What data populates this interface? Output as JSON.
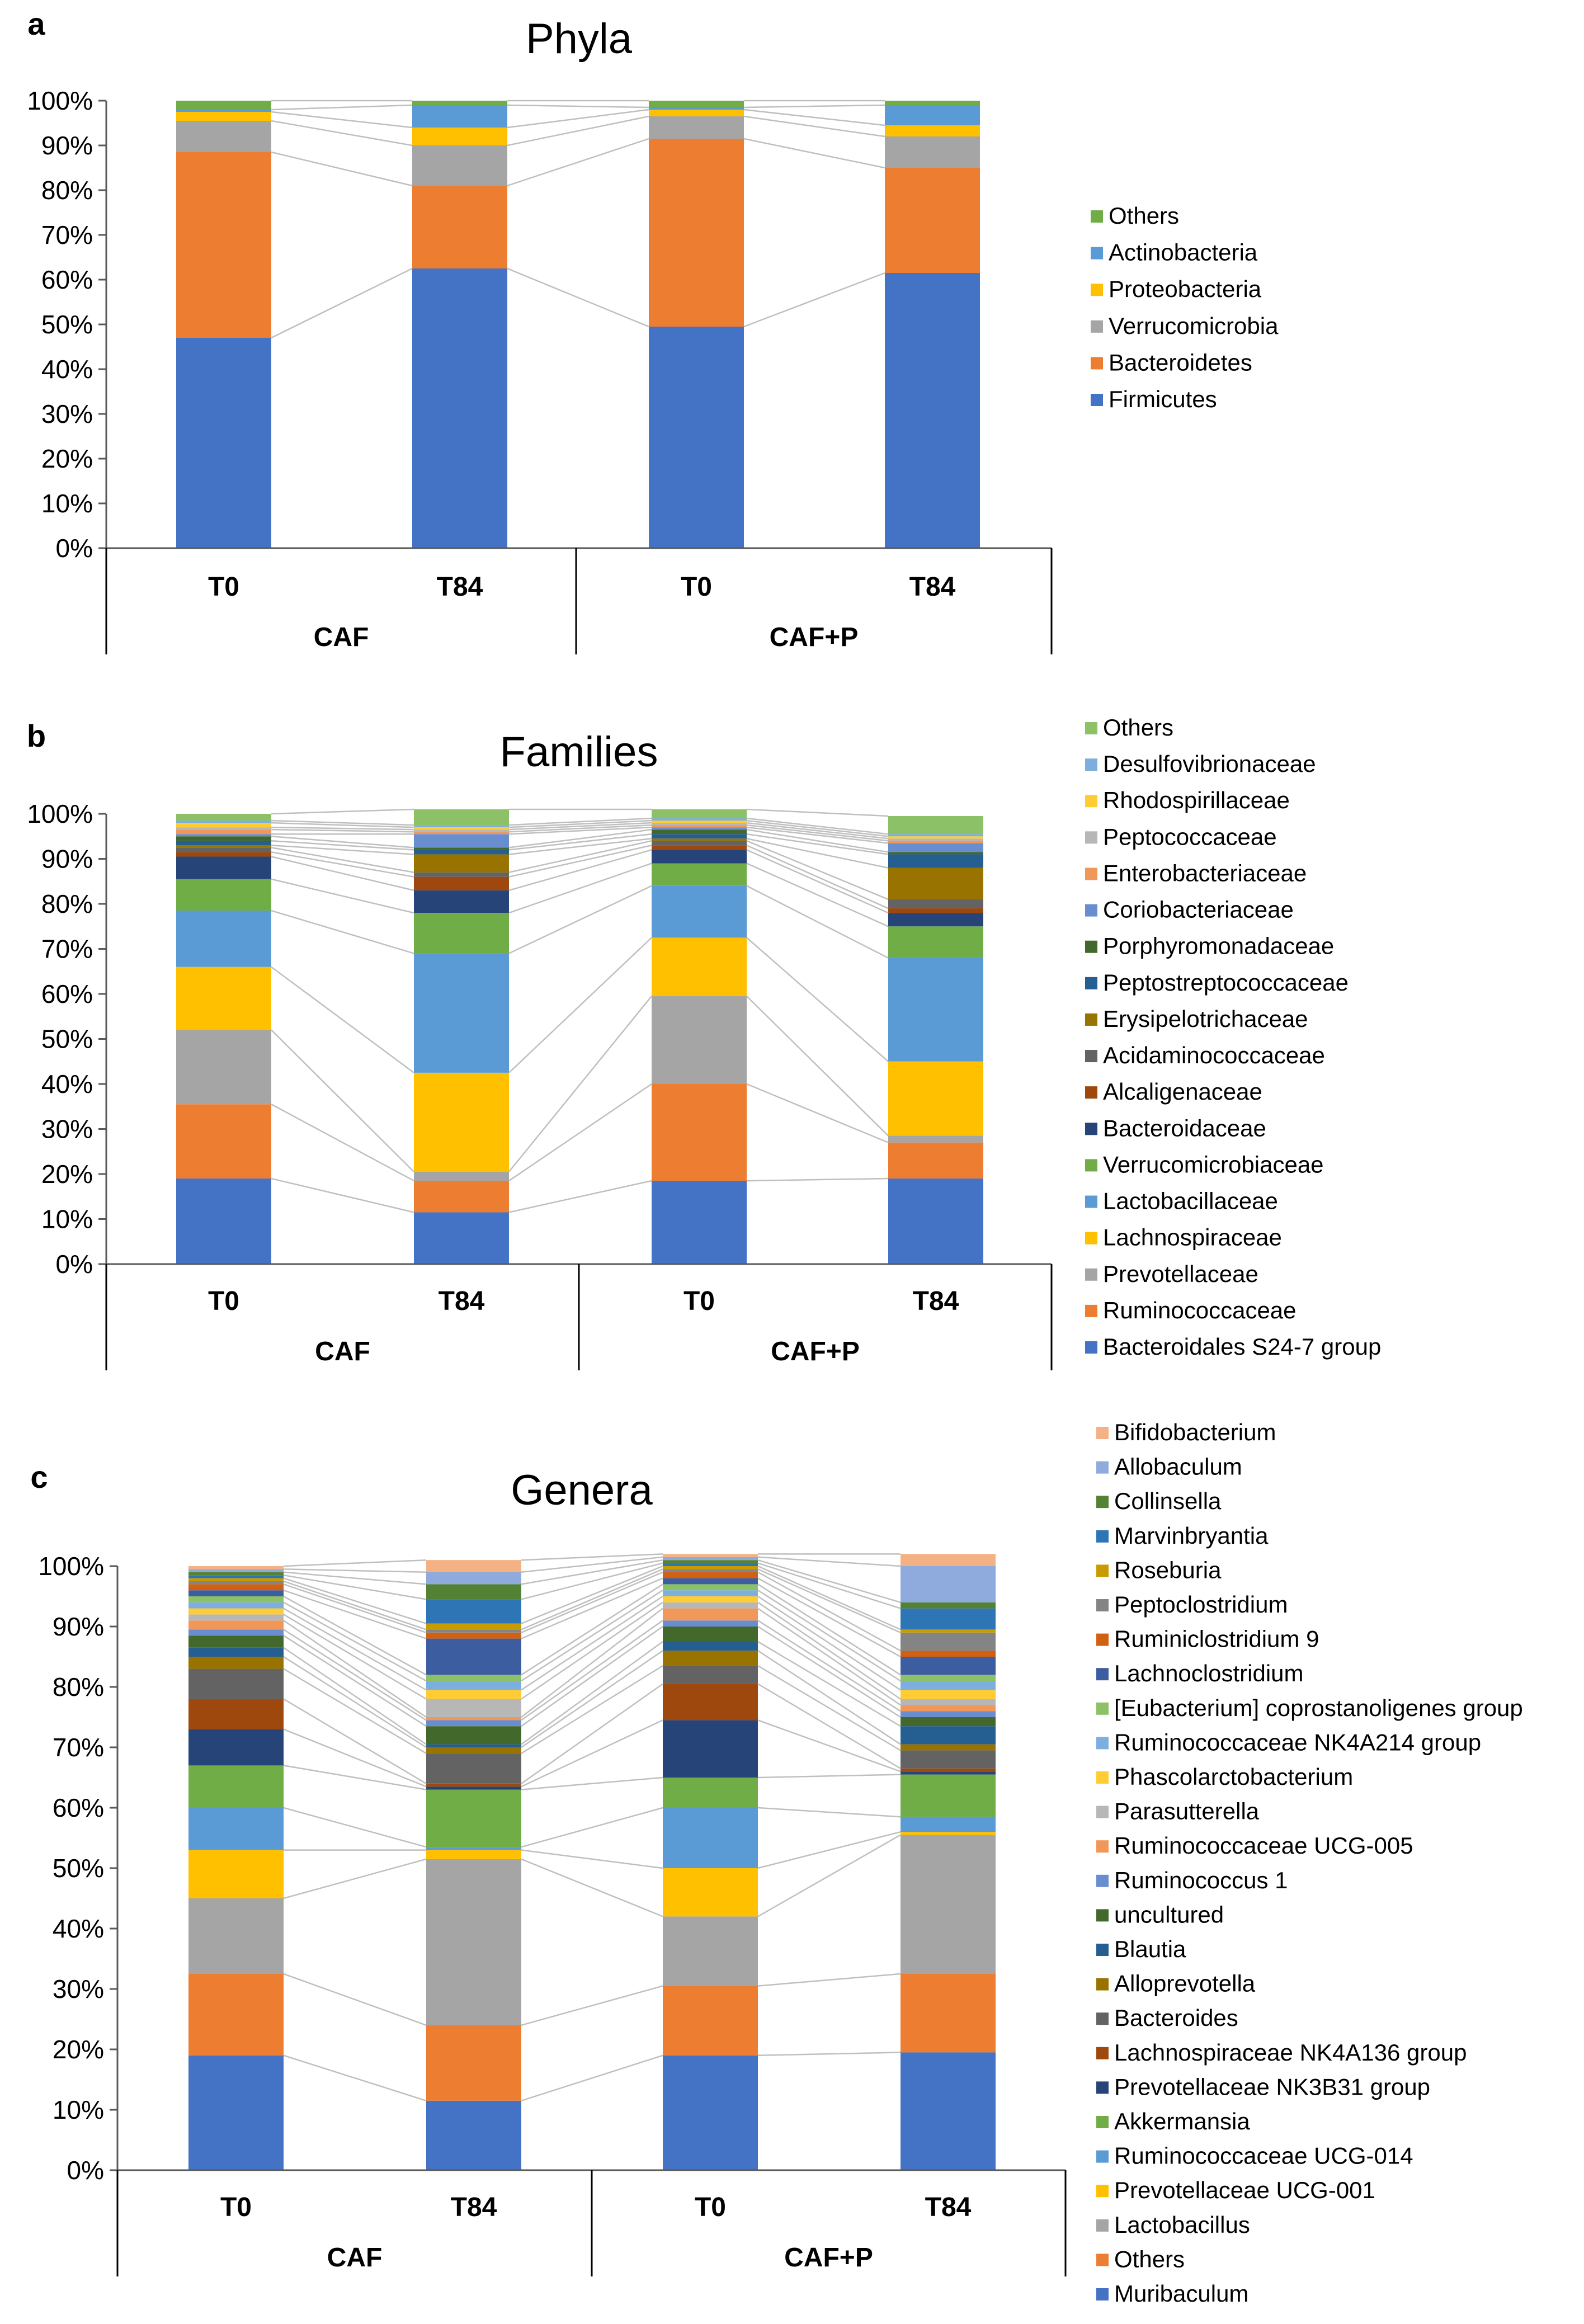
{
  "chart_data": [
    {
      "type": "bar",
      "stacked": true,
      "letter": "a",
      "title": "Phyla",
      "categories": [
        "T0",
        "T84",
        "T0",
        "T84"
      ],
      "groups": [
        {
          "label": "CAF",
          "span": [
            0,
            1
          ]
        },
        {
          "label": "CAF+P",
          "span": [
            2,
            3
          ]
        }
      ],
      "ylim": [
        0,
        100
      ],
      "ytick_labels": [
        "0%",
        "10%",
        "20%",
        "30%",
        "40%",
        "50%",
        "60%",
        "70%",
        "80%",
        "90%",
        "100%"
      ],
      "grid": false,
      "legend_position": "right",
      "series": [
        {
          "name": "Firmicutes",
          "color": "#4472C4",
          "values": [
            47,
            62.5,
            49.5,
            61.5
          ]
        },
        {
          "name": "Bacteroidetes",
          "color": "#ED7D31",
          "values": [
            41.5,
            18.5,
            42,
            23.5
          ]
        },
        {
          "name": "Verrucomicrobia",
          "color": "#A5A5A5",
          "values": [
            7,
            9,
            5,
            7
          ]
        },
        {
          "name": "Proteobacteria",
          "color": "#FFC000",
          "values": [
            2,
            4,
            1.5,
            2.5
          ]
        },
        {
          "name": "Actinobacteria",
          "color": "#5B9BD5",
          "values": [
            0.5,
            5,
            0.5,
            4.5
          ]
        },
        {
          "name": "Others",
          "color": "#70AD47",
          "values": [
            2,
            1,
            1.5,
            1
          ]
        }
      ]
    },
    {
      "type": "bar",
      "stacked": true,
      "letter": "b",
      "title": "Families",
      "categories": [
        "T0",
        "T84",
        "T0",
        "T84"
      ],
      "groups": [
        {
          "label": "CAF",
          "span": [
            0,
            1
          ]
        },
        {
          "label": "CAF+P",
          "span": [
            2,
            3
          ]
        }
      ],
      "ylim": [
        0,
        100
      ],
      "ytick_labels": [
        "0%",
        "10%",
        "20%",
        "30%",
        "40%",
        "50%",
        "60%",
        "70%",
        "80%",
        "90%",
        "100%"
      ],
      "grid": false,
      "legend_position": "right",
      "series": [
        {
          "name": "Bacteroidales S24-7 group",
          "color": "#4472C4",
          "values": [
            19,
            11.5,
            18.5,
            19
          ]
        },
        {
          "name": "Ruminococcaceae",
          "color": "#ED7D31",
          "values": [
            16.5,
            7,
            21.5,
            8
          ]
        },
        {
          "name": "Prevotellaceae",
          "color": "#A5A5A5",
          "values": [
            16.5,
            2,
            19.5,
            1.5
          ]
        },
        {
          "name": "Lachnospiraceae",
          "color": "#FFC000",
          "values": [
            14,
            22,
            13,
            16.5
          ]
        },
        {
          "name": "Lactobacillaceae",
          "color": "#5B9BD5",
          "values": [
            12.5,
            26.5,
            11.5,
            23
          ]
        },
        {
          "name": "Verrucomicrobiaceae",
          "color": "#70AD47",
          "values": [
            7,
            9,
            5,
            7
          ]
        },
        {
          "name": "Bacteroidaceae",
          "color": "#264478",
          "values": [
            5,
            5,
            3,
            3
          ]
        },
        {
          "name": "Alcaligenaceae",
          "color": "#9E480E",
          "values": [
            1,
            3,
            1,
            1
          ]
        },
        {
          "name": "Acidaminococcaceae",
          "color": "#636363",
          "values": [
            1,
            1,
            1,
            2
          ]
        },
        {
          "name": "Erysipelotrichaceae",
          "color": "#997300",
          "values": [
            0.5,
            4,
            0.5,
            7
          ]
        },
        {
          "name": "Peptostreptococcaceae",
          "color": "#255E91",
          "values": [
            1,
            1,
            1,
            3
          ]
        },
        {
          "name": "Porphyromonadaceae",
          "color": "#43682B",
          "values": [
            1,
            0.5,
            1,
            0.5
          ]
        },
        {
          "name": "Coriobacteriaceae",
          "color": "#698ED0",
          "values": [
            0.5,
            3,
            0.5,
            2
          ]
        },
        {
          "name": "Enterobacteriaceae",
          "color": "#F1975A",
          "values": [
            1,
            0.5,
            0.5,
            0.5
          ]
        },
        {
          "name": "Peptococcaceae",
          "color": "#B7B7B7",
          "values": [
            0.5,
            0.5,
            0.5,
            0.5
          ]
        },
        {
          "name": "Rhodospirillaceae",
          "color": "#FFCD33",
          "values": [
            1,
            0.5,
            0.5,
            0.5
          ]
        },
        {
          "name": "Desulfovibrionaceae",
          "color": "#7CAFDD",
          "values": [
            0.5,
            0.5,
            0.5,
            0.5
          ]
        },
        {
          "name": "Others",
          "color": "#8CC168",
          "values": [
            1.5,
            3.5,
            2,
            4
          ]
        }
      ]
    },
    {
      "type": "bar",
      "stacked": true,
      "letter": "c",
      "title": "Genera",
      "categories": [
        "T0",
        "T84",
        "T0",
        "T84"
      ],
      "groups": [
        {
          "label": "CAF",
          "span": [
            0,
            1
          ]
        },
        {
          "label": "CAF+P",
          "span": [
            2,
            3
          ]
        }
      ],
      "ylim": [
        0,
        100
      ],
      "ytick_labels": [
        "0%",
        "10%",
        "20%",
        "30%",
        "40%",
        "50%",
        "60%",
        "70%",
        "80%",
        "90%",
        "100%"
      ],
      "grid": false,
      "legend_position": "right",
      "series": [
        {
          "name": "Muribaculum",
          "color": "#4472C4",
          "values": [
            19,
            11.5,
            19,
            19.5
          ]
        },
        {
          "name": "Others",
          "color": "#ED7D31",
          "values": [
            13.5,
            12.5,
            11.5,
            13
          ]
        },
        {
          "name": "Lactobacillus",
          "color": "#A5A5A5",
          "values": [
            12.5,
            27.5,
            11.5,
            23
          ]
        },
        {
          "name": "Prevotellaceae UCG-001",
          "color": "#FFC000",
          "values": [
            8,
            1.5,
            8,
            0.5
          ]
        },
        {
          "name": "Ruminococcaceae UCG-014",
          "color": "#5B9BD5",
          "values": [
            7,
            0.5,
            10,
            2.5
          ]
        },
        {
          "name": "Akkermansia",
          "color": "#70AD47",
          "values": [
            7,
            9.5,
            5,
            7
          ]
        },
        {
          "name": "Prevotellaceae NK3B31 group",
          "color": "#264478",
          "values": [
            6,
            0.5,
            9.5,
            0.5
          ]
        },
        {
          "name": "Lachnospiraceae NK4A136 group",
          "color": "#9E480E",
          "values": [
            5,
            0.5,
            6,
            0.5
          ]
        },
        {
          "name": "Bacteroides",
          "color": "#636363",
          "values": [
            5,
            5,
            3,
            3
          ]
        },
        {
          "name": "Alloprevotella",
          "color": "#997300",
          "values": [
            2,
            1,
            2.5,
            1
          ]
        },
        {
          "name": "Blautia",
          "color": "#255E91",
          "values": [
            1.5,
            0.5,
            1.5,
            3
          ]
        },
        {
          "name": "uncultured",
          "color": "#43682B",
          "values": [
            2,
            3,
            2.5,
            1.5
          ]
        },
        {
          "name": "Ruminococcus 1",
          "color": "#698ED0",
          "values": [
            1,
            1,
            1,
            1
          ]
        },
        {
          "name": "Ruminococcaceae UCG-005",
          "color": "#F1975A",
          "values": [
            1.5,
            0.5,
            2,
            1
          ]
        },
        {
          "name": "Parasutterella",
          "color": "#B7B7B7",
          "values": [
            1,
            3,
            1,
            1
          ]
        },
        {
          "name": "Phascolarctobacterium",
          "color": "#FFCD33",
          "values": [
            1,
            1.5,
            1,
            1.5
          ]
        },
        {
          "name": "Ruminococcaceae NK4A214 group",
          "color": "#7CAFDD",
          "values": [
            1,
            1.5,
            1,
            1.5
          ]
        },
        {
          "name": "[Eubacterium] coprostanoligenes group",
          "color": "#8CC168",
          "values": [
            1,
            1,
            1,
            1
          ]
        },
        {
          "name": "Lachnoclostridium",
          "color": "#3C5D9F",
          "values": [
            1,
            6,
            1,
            3
          ]
        },
        {
          "name": "Ruminiclostridium 9",
          "color": "#D26012",
          "values": [
            1,
            1,
            1,
            1
          ]
        },
        {
          "name": "Peptoclostridium",
          "color": "#848484",
          "values": [
            0.5,
            0.5,
            0.5,
            3
          ]
        },
        {
          "name": "Roseburia",
          "color": "#C89C00",
          "values": [
            0.5,
            1,
            0.5,
            0.5
          ]
        },
        {
          "name": "Marvinbryantia",
          "color": "#2E75B6",
          "values": [
            0.5,
            4,
            0.5,
            3.5
          ]
        },
        {
          "name": "Collinsella",
          "color": "#548235",
          "values": [
            0.5,
            2.5,
            0.5,
            1
          ]
        },
        {
          "name": "Allobaculum",
          "color": "#8FAADC",
          "values": [
            0.5,
            2,
            0.5,
            6
          ]
        },
        {
          "name": "Bifidobacterium",
          "color": "#F4B183",
          "values": [
            0.5,
            2,
            0.5,
            2
          ]
        }
      ]
    }
  ]
}
